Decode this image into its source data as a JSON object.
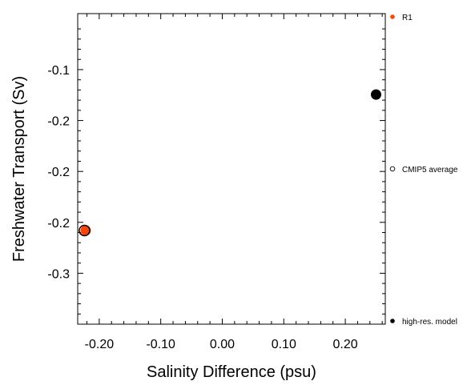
{
  "chart_data": {
    "type": "scatter",
    "xlabel": "Salinity Difference (psu)",
    "ylabel": "Freshwater Transport (Sv)",
    "xlim": [
      -0.235,
      0.265
    ],
    "ylim": [
      -0.35,
      -0.045
    ],
    "x_ticks": [
      -0.2,
      -0.1,
      0.0,
      0.1,
      0.2
    ],
    "x_tick_labels": [
      "-0.20",
      "-0.10",
      "0.00",
      "0.10",
      "0.20"
    ],
    "y_ticks": [
      -0.1,
      -0.15,
      -0.2,
      -0.25,
      -0.3
    ],
    "y_tick_labels": [
      "-0.1",
      "-0.2",
      "-0.2",
      "-0.2",
      "-0.3"
    ],
    "grid": false,
    "legend_position": "right",
    "series": [
      {
        "name": "R1",
        "color": "#ff4500",
        "marker": "filled-circle",
        "points": [
          {
            "x": -0.222,
            "y": -0.258
          }
        ]
      },
      {
        "name": "CMIP5 average",
        "color": "#000000",
        "marker": "open-circle",
        "points": [
          {
            "x": -0.224,
            "y": -0.258
          }
        ]
      },
      {
        "name": "high-res. model",
        "color": "#000000",
        "marker": "filled-circle",
        "points": [
          {
            "x": 0.25,
            "y": -0.1245
          }
        ]
      }
    ]
  },
  "legend": {
    "items": [
      {
        "label": "R1",
        "color": "#ff4500",
        "marker": "filled"
      },
      {
        "label": "CMIP5 average",
        "color": "#000000",
        "marker": "open"
      },
      {
        "label": "high-res. model",
        "color": "#000000",
        "marker": "filled"
      }
    ]
  }
}
